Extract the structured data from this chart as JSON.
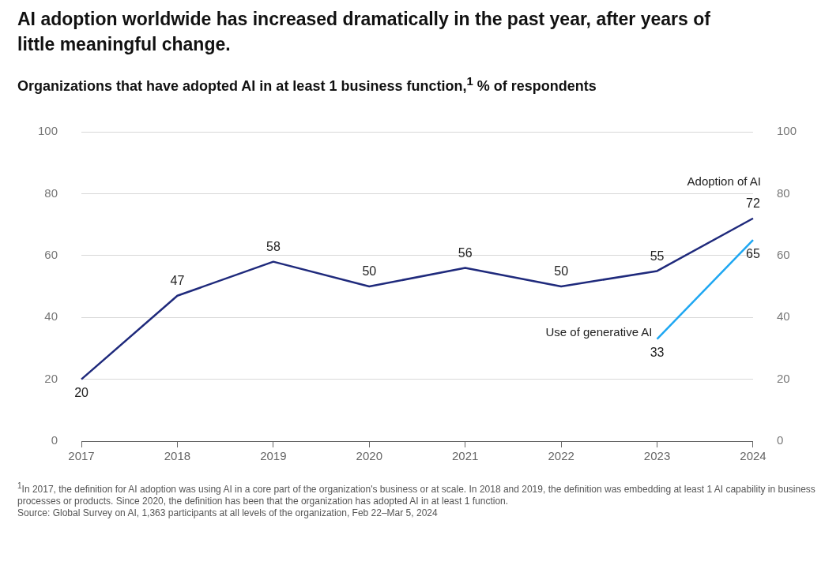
{
  "chart_data": {
    "type": "line",
    "title": "AI adoption worldwide has increased dramatically in the past year, after years of little meaningful change.",
    "subtitle": "Organizations that have adopted AI in at least 1 business function,$^{1}$ % of respondents",
    "categories": [
      "2017",
      "2018",
      "2019",
      "2020",
      "2021",
      "2022",
      "2023",
      "2024"
    ],
    "series": [
      {
        "name": "Adoption of AI",
        "color": "#1f2a7c",
        "values": [
          20,
          47,
          58,
          50,
          56,
          50,
          55,
          72
        ]
      },
      {
        "name": "Use of generative AI",
        "color": "#1ea7f2",
        "values": [
          null,
          null,
          null,
          null,
          null,
          null,
          33,
          65
        ]
      }
    ],
    "ylim": [
      0,
      100
    ],
    "yticks": [
      0,
      20,
      40,
      60,
      80,
      100
    ],
    "y2lim": [
      0,
      100
    ],
    "y2ticks": [
      0,
      20,
      40,
      60,
      80,
      100
    ],
    "grid": "y",
    "legend": false,
    "marker": "none",
    "line_style": "solid",
    "data_labels": true,
    "annotations": [
      "$^{1}$In 2017, the definition for AI adoption was using AI in a core part of the organization's business or at scale. In 2018 and 2019, the definition was embedding at least 1 AI capability in business processes or products. Since 2020, the definition has been that the organization has adopted AI in at least 1 function.",
      "Source: Global Survey on AI, 1,363 participants at all levels of the organization, Feb 22–Mar 5, 2024"
    ]
  }
}
